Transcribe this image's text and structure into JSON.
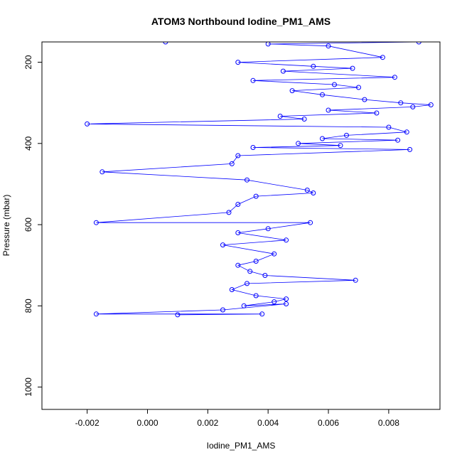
{
  "chart_data": {
    "type": "scatter",
    "title": "ATOM3 Northbound Iodine_PM1_AMS",
    "xlabel": "Iodine_PM1_AMS",
    "ylabel": "Pressure (mbar)",
    "xlim": [
      -0.0035,
      0.0097
    ],
    "ylim": [
      1055,
      150
    ],
    "y_reversed": true,
    "x_ticks": [
      -0.002,
      0.0,
      0.002,
      0.004,
      0.006,
      0.008
    ],
    "x_tick_labels": [
      "-0.002",
      "0.000",
      "0.002",
      "0.004",
      "0.006",
      "0.008"
    ],
    "y_ticks": [
      200,
      400,
      600,
      800,
      1000
    ],
    "y_tick_labels": [
      "200",
      "400",
      "600",
      "800",
      "1000"
    ],
    "grid": false,
    "point_style": "open-circle",
    "line_connected": true,
    "series": [
      {
        "color": "#0000ff",
        "points": [
          [
            0.0006,
            150
          ],
          [
            0.009,
            150
          ],
          [
            0.004,
            155
          ],
          [
            0.006,
            160
          ],
          [
            0.0078,
            188
          ],
          [
            0.003,
            200
          ],
          [
            0.0055,
            210
          ],
          [
            0.0068,
            215
          ],
          [
            0.0045,
            222
          ],
          [
            0.0082,
            237
          ],
          [
            0.0035,
            245
          ],
          [
            0.0062,
            255
          ],
          [
            0.007,
            262
          ],
          [
            0.0048,
            270
          ],
          [
            0.0058,
            280
          ],
          [
            0.0072,
            292
          ],
          [
            0.0084,
            300
          ],
          [
            0.0094,
            305
          ],
          [
            0.0088,
            310
          ],
          [
            0.006,
            318
          ],
          [
            0.0076,
            325
          ],
          [
            0.0044,
            333
          ],
          [
            0.0052,
            340
          ],
          [
            -0.002,
            352
          ],
          [
            0.008,
            360
          ],
          [
            0.0086,
            372
          ],
          [
            0.0066,
            380
          ],
          [
            0.0058,
            388
          ],
          [
            0.0083,
            392
          ],
          [
            0.005,
            400
          ],
          [
            0.0064,
            405
          ],
          [
            0.0035,
            410
          ],
          [
            0.0087,
            415
          ],
          [
            0.003,
            430
          ],
          [
            0.0028,
            450
          ],
          [
            -0.0015,
            470
          ],
          [
            0.0033,
            490
          ],
          [
            0.0053,
            515
          ],
          [
            0.0055,
            522
          ],
          [
            0.0036,
            530
          ],
          [
            0.003,
            550
          ],
          [
            0.0027,
            570
          ],
          [
            -0.0017,
            595
          ],
          [
            0.0054,
            595
          ],
          [
            0.004,
            610
          ],
          [
            0.003,
            620
          ],
          [
            0.0046,
            638
          ],
          [
            0.0025,
            650
          ],
          [
            0.0042,
            672
          ],
          [
            0.0036,
            690
          ],
          [
            0.003,
            700
          ],
          [
            0.0034,
            715
          ],
          [
            0.0039,
            725
          ],
          [
            0.0069,
            737
          ],
          [
            0.0033,
            745
          ],
          [
            0.0028,
            760
          ],
          [
            0.0036,
            775
          ],
          [
            0.0046,
            783
          ],
          [
            0.0042,
            790
          ],
          [
            0.0032,
            800
          ],
          [
            0.0046,
            795
          ],
          [
            0.0025,
            810
          ],
          [
            -0.0017,
            820
          ],
          [
            0.0038,
            820
          ],
          [
            0.001,
            822
          ]
        ]
      }
    ]
  }
}
